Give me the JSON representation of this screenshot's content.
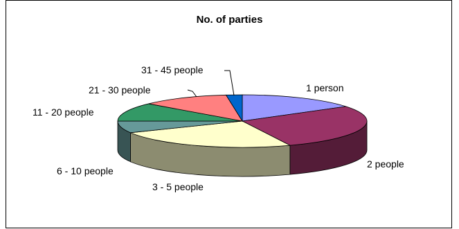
{
  "chart_data": {
    "type": "pie",
    "title": "No. of parties",
    "categories": [
      "1 person",
      "2 people",
      "3 - 5 people",
      "6 - 10 people",
      "11 - 20 people",
      "21 - 30 people",
      "31 - 45 people"
    ],
    "values": [
      15,
      27,
      23,
      7,
      11,
      11,
      2
    ],
    "colors": [
      "#9999ff",
      "#993366",
      "#ffffcc",
      "#669999",
      "#339966",
      "#ff8080",
      "#0066cc"
    ],
    "legend": "none",
    "three_d": true
  }
}
